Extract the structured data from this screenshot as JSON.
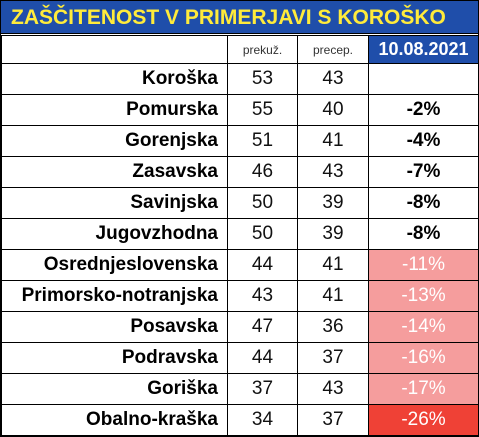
{
  "title": "ZAŠČITENOST V PRIMERJAVI S KOROŠKO",
  "columns": {
    "vaccinated_label": "prekuž.",
    "recovered_label": "precep.",
    "date": "10.08.2021"
  },
  "colors": {
    "title_bg": "#1f4eaa",
    "title_text": "#ffeb3b",
    "date_bg": "#1f4eaa",
    "highlight_pink": "#f59d9d",
    "highlight_red": "#ef4136"
  },
  "rows": [
    {
      "region": "Koroška",
      "prekuz": "53",
      "precep": "43",
      "diff": ""
    },
    {
      "region": "Pomurska",
      "prekuz": "55",
      "precep": "40",
      "diff": "-2%"
    },
    {
      "region": "Gorenjska",
      "prekuz": "51",
      "precep": "41",
      "diff": "-4%"
    },
    {
      "region": "Zasavska",
      "prekuz": "46",
      "precep": "43",
      "diff": "-7%"
    },
    {
      "region": "Savinjska",
      "prekuz": "50",
      "precep": "39",
      "diff": "-8%"
    },
    {
      "region": "Jugovzhodna",
      "prekuz": "50",
      "precep": "39",
      "diff": "-8%"
    },
    {
      "region": "Osrednjeslovenska",
      "prekuz": "44",
      "precep": "41",
      "diff": "-11%"
    },
    {
      "region": "Primorsko-notranjska",
      "prekuz": "43",
      "precep": "41",
      "diff": "-13%"
    },
    {
      "region": "Posavska",
      "prekuz": "47",
      "precep": "36",
      "diff": "-14%"
    },
    {
      "region": "Podravska",
      "prekuz": "44",
      "precep": "37",
      "diff": "-16%"
    },
    {
      "region": "Goriška",
      "prekuz": "37",
      "precep": "43",
      "diff": "-17%"
    },
    {
      "region": "Obalno-kraška",
      "prekuz": "34",
      "precep": "37",
      "diff": "-26%"
    }
  ]
}
